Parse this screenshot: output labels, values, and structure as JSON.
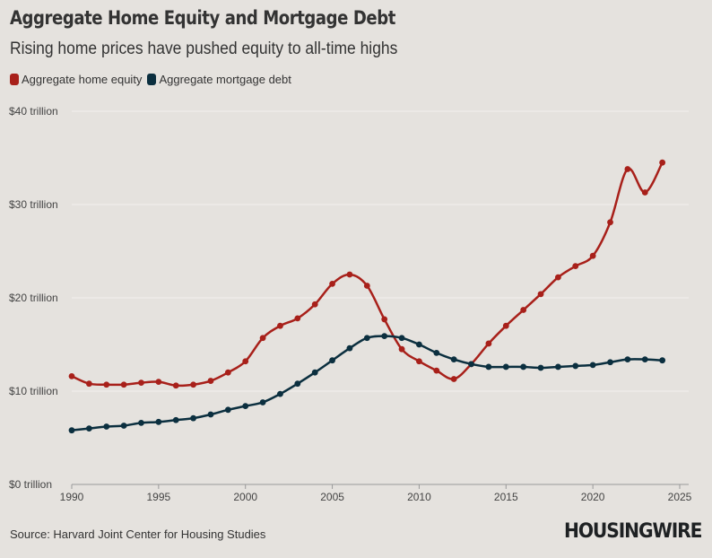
{
  "chart_data": {
    "type": "line",
    "title": "Aggregate Home Equity and Mortgage Debt",
    "subtitle": "Rising home prices have pushed equity to all-time highs",
    "xlabel": "",
    "ylabel": "",
    "xlim": [
      1990,
      2025
    ],
    "ylim": [
      0,
      40
    ],
    "grid": true,
    "legend_position": "top-left",
    "x_ticks": [
      "1990",
      "1995",
      "2000",
      "2005",
      "2010",
      "2015",
      "2020",
      "2025"
    ],
    "y_ticks": [
      "$0 trillion",
      "$10 trillion",
      "$20 trillion",
      "$30 trillion",
      "$40 trillion"
    ],
    "x": [
      1990,
      1991,
      1992,
      1993,
      1994,
      1995,
      1996,
      1997,
      1998,
      1999,
      2000,
      2001,
      2002,
      2003,
      2004,
      2005,
      2006,
      2007,
      2008,
      2009,
      2010,
      2011,
      2012,
      2013,
      2014,
      2015,
      2016,
      2017,
      2018,
      2019,
      2020,
      2021,
      2022,
      2023,
      2024
    ],
    "series": [
      {
        "name": "Aggregate home equity",
        "color": "#a8201a",
        "values": [
          11.6,
          10.8,
          10.7,
          10.7,
          10.9,
          11.0,
          10.6,
          10.7,
          11.1,
          12.0,
          13.2,
          15.7,
          17.0,
          17.8,
          19.3,
          21.5,
          22.5,
          21.3,
          17.7,
          14.5,
          13.2,
          12.2,
          11.3,
          12.9,
          15.1,
          17.0,
          18.7,
          20.4,
          22.2,
          23.4,
          24.5,
          28.1,
          33.8,
          31.3,
          34.5
        ]
      },
      {
        "name": "Aggregate mortgage debt",
        "color": "#0b2f3f",
        "values": [
          5.8,
          6.0,
          6.2,
          6.3,
          6.6,
          6.7,
          6.9,
          7.1,
          7.5,
          8.0,
          8.4,
          8.8,
          9.7,
          10.8,
          12.0,
          13.3,
          14.6,
          15.7,
          15.9,
          15.7,
          15.0,
          14.1,
          13.4,
          12.9,
          12.6,
          12.6,
          12.6,
          12.5,
          12.6,
          12.7,
          12.8,
          13.1,
          13.4,
          13.4,
          13.3
        ]
      }
    ]
  },
  "source": "Source: Harvard Joint Center for Housing Studies",
  "logo": "HOUSINGWIRE"
}
